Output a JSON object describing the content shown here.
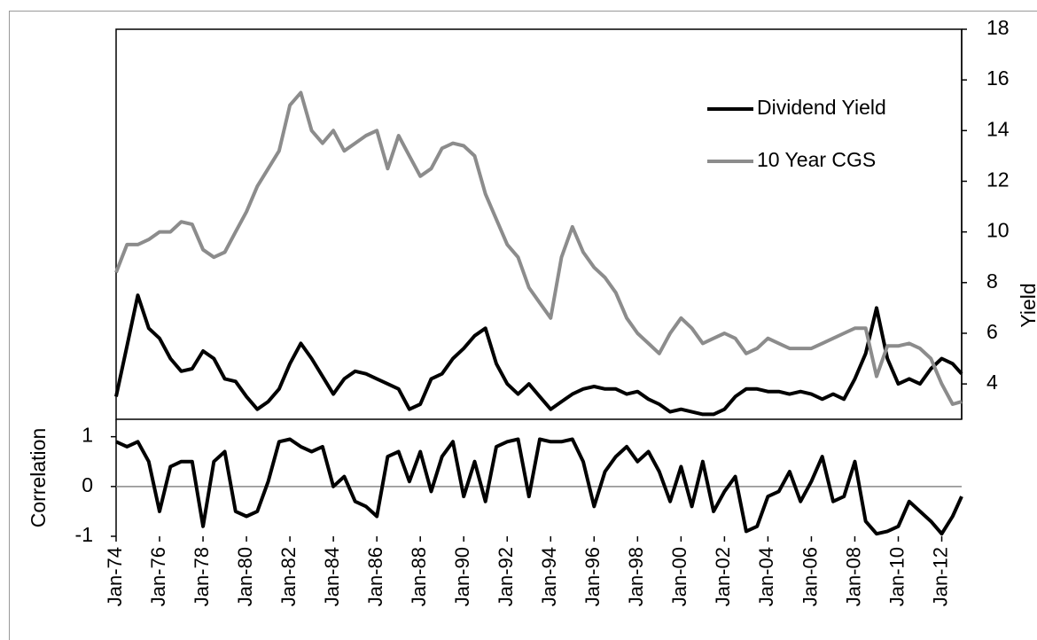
{
  "chart_data": [
    {
      "type": "line",
      "y_axis_side": "right",
      "y_label": "Yield",
      "x": [
        "1974-01",
        "1974-07",
        "1975-01",
        "1975-07",
        "1976-01",
        "1976-07",
        "1977-01",
        "1977-07",
        "1978-01",
        "1978-07",
        "1979-01",
        "1979-07",
        "1980-01",
        "1980-07",
        "1981-01",
        "1981-07",
        "1982-01",
        "1982-07",
        "1983-01",
        "1983-07",
        "1984-01",
        "1984-07",
        "1985-01",
        "1985-07",
        "1986-01",
        "1986-07",
        "1987-01",
        "1987-07",
        "1988-01",
        "1988-07",
        "1989-01",
        "1989-07",
        "1990-01",
        "1990-07",
        "1991-01",
        "1991-07",
        "1992-01",
        "1992-07",
        "1993-01",
        "1993-07",
        "1994-01",
        "1994-07",
        "1995-01",
        "1995-07",
        "1996-01",
        "1996-07",
        "1997-01",
        "1997-07",
        "1998-01",
        "1998-07",
        "1999-01",
        "1999-07",
        "2000-01",
        "2000-07",
        "2001-01",
        "2001-07",
        "2002-01",
        "2002-07",
        "2003-01",
        "2003-07",
        "2004-01",
        "2004-07",
        "2005-01",
        "2005-07",
        "2006-01",
        "2006-07",
        "2007-01",
        "2007-07",
        "2008-01",
        "2008-07",
        "2009-01",
        "2009-07",
        "2010-01",
        "2010-07",
        "2011-01",
        "2011-07",
        "2012-01",
        "2012-07",
        "2012-12"
      ],
      "xlim": [
        "1974-01",
        "2012-12"
      ],
      "ylim": [
        2.5,
        18
      ],
      "yticks": [
        4,
        6,
        8,
        10,
        12,
        14,
        16,
        18
      ],
      "series": [
        {
          "name": "Dividend Yield",
          "color": "#000000",
          "values": [
            3.5,
            5.5,
            7.5,
            6.2,
            5.8,
            5.0,
            4.5,
            4.6,
            5.3,
            5.0,
            4.2,
            4.1,
            3.5,
            3.0,
            3.3,
            3.8,
            4.8,
            5.6,
            5.0,
            4.3,
            3.6,
            4.2,
            4.5,
            4.4,
            4.2,
            4.0,
            3.8,
            3.0,
            3.2,
            4.2,
            4.4,
            5.0,
            5.4,
            5.9,
            6.2,
            4.8,
            4.0,
            3.6,
            4.0,
            3.5,
            3.0,
            3.3,
            3.6,
            3.8,
            3.9,
            3.8,
            3.8,
            3.6,
            3.7,
            3.4,
            3.2,
            2.9,
            3.0,
            2.9,
            2.8,
            2.8,
            3.0,
            3.5,
            3.8,
            3.8,
            3.7,
            3.7,
            3.6,
            3.7,
            3.6,
            3.4,
            3.6,
            3.4,
            4.2,
            5.2,
            7.0,
            5.0,
            4.0,
            4.2,
            4.0,
            4.6,
            5.0,
            4.8,
            4.4
          ]
        },
        {
          "name": "10 Year CGS",
          "color": "#8c8c8c",
          "values": [
            8.4,
            9.5,
            9.5,
            9.7,
            10.0,
            10.0,
            10.4,
            10.3,
            9.3,
            9.0,
            9.2,
            10.0,
            10.8,
            11.8,
            12.5,
            13.2,
            15.0,
            15.5,
            14.0,
            13.5,
            14.0,
            13.2,
            13.5,
            13.8,
            14.0,
            12.5,
            13.8,
            13.0,
            12.2,
            12.5,
            13.3,
            13.5,
            13.4,
            13.0,
            11.5,
            10.5,
            9.5,
            9.0,
            7.8,
            7.2,
            6.6,
            9.0,
            10.2,
            9.2,
            8.6,
            8.2,
            7.6,
            6.6,
            6.0,
            5.6,
            5.2,
            6.0,
            6.6,
            6.2,
            5.6,
            5.8,
            6.0,
            5.8,
            5.2,
            5.4,
            5.8,
            5.6,
            5.4,
            5.4,
            5.4,
            5.6,
            5.8,
            6.0,
            6.2,
            6.2,
            4.3,
            5.5,
            5.5,
            5.6,
            5.4,
            5.0,
            4.0,
            3.2,
            3.3
          ]
        }
      ]
    },
    {
      "type": "line",
      "y_axis_side": "left",
      "y_label": "Correlation",
      "zero_line": true,
      "x": [
        "1974-01",
        "1974-07",
        "1975-01",
        "1975-07",
        "1976-01",
        "1976-07",
        "1977-01",
        "1977-07",
        "1978-01",
        "1978-07",
        "1979-01",
        "1979-07",
        "1980-01",
        "1980-07",
        "1981-01",
        "1981-07",
        "1982-01",
        "1982-07",
        "1983-01",
        "1983-07",
        "1984-01",
        "1984-07",
        "1985-01",
        "1985-07",
        "1986-01",
        "1986-07",
        "1987-01",
        "1987-07",
        "1988-01",
        "1988-07",
        "1989-01",
        "1989-07",
        "1990-01",
        "1990-07",
        "1991-01",
        "1991-07",
        "1992-01",
        "1992-07",
        "1993-01",
        "1993-07",
        "1994-01",
        "1994-07",
        "1995-01",
        "1995-07",
        "1996-01",
        "1996-07",
        "1997-01",
        "1997-07",
        "1998-01",
        "1998-07",
        "1999-01",
        "1999-07",
        "2000-01",
        "2000-07",
        "2001-01",
        "2001-07",
        "2002-01",
        "2002-07",
        "2003-01",
        "2003-07",
        "2004-01",
        "2004-07",
        "2005-01",
        "2005-07",
        "2006-01",
        "2006-07",
        "2007-01",
        "2007-07",
        "2008-01",
        "2008-07",
        "2009-01",
        "2009-07",
        "2010-01",
        "2010-07",
        "2011-01",
        "2011-07",
        "2012-01",
        "2012-07",
        "2012-12"
      ],
      "xlim": [
        "1974-01",
        "2012-12"
      ],
      "xticks": [
        {
          "value": "1974-01",
          "label": "Jan-74"
        },
        {
          "value": "1976-01",
          "label": "Jan-76"
        },
        {
          "value": "1978-01",
          "label": "Jan-78"
        },
        {
          "value": "1980-01",
          "label": "Jan-80"
        },
        {
          "value": "1982-01",
          "label": "Jan-82"
        },
        {
          "value": "1984-01",
          "label": "Jan-84"
        },
        {
          "value": "1986-01",
          "label": "Jan-86"
        },
        {
          "value": "1988-01",
          "label": "Jan-88"
        },
        {
          "value": "1990-01",
          "label": "Jan-90"
        },
        {
          "value": "1992-01",
          "label": "Jan-92"
        },
        {
          "value": "1994-01",
          "label": "Jan-94"
        },
        {
          "value": "1996-01",
          "label": "Jan-96"
        },
        {
          "value": "1998-01",
          "label": "Jan-98"
        },
        {
          "value": "2000-01",
          "label": "Jan-00"
        },
        {
          "value": "2002-01",
          "label": "Jan-02"
        },
        {
          "value": "2004-01",
          "label": "Jan-04"
        },
        {
          "value": "2006-01",
          "label": "Jan-06"
        },
        {
          "value": "2008-01",
          "label": "Jan-08"
        },
        {
          "value": "2010-01",
          "label": "Jan-10"
        },
        {
          "value": "2012-01",
          "label": "Jan-12"
        }
      ],
      "ylim": [
        -1,
        1.35
      ],
      "yticks": [
        -1,
        0,
        1
      ],
      "series": [
        {
          "color": "#000000",
          "values": [
            0.9,
            0.8,
            0.9,
            0.5,
            -0.5,
            0.4,
            0.5,
            0.5,
            -0.8,
            0.5,
            0.7,
            -0.5,
            -0.6,
            -0.5,
            0.1,
            0.9,
            0.95,
            0.8,
            0.7,
            0.8,
            0.0,
            0.2,
            -0.3,
            -0.4,
            -0.6,
            0.6,
            0.7,
            0.1,
            0.7,
            -0.1,
            0.6,
            0.9,
            -0.2,
            0.5,
            -0.3,
            0.8,
            0.9,
            0.95,
            -0.2,
            0.95,
            0.9,
            0.9,
            0.95,
            0.5,
            -0.4,
            0.3,
            0.6,
            0.8,
            0.5,
            0.7,
            0.3,
            -0.3,
            0.4,
            -0.4,
            0.5,
            -0.5,
            -0.1,
            0.2,
            -0.9,
            -0.8,
            -0.2,
            -0.1,
            0.3,
            -0.3,
            0.1,
            0.6,
            -0.3,
            -0.2,
            0.5,
            -0.7,
            -0.95,
            -0.9,
            -0.8,
            -0.3,
            -0.5,
            -0.7,
            -0.95,
            -0.6,
            -0.2
          ]
        }
      ]
    }
  ]
}
